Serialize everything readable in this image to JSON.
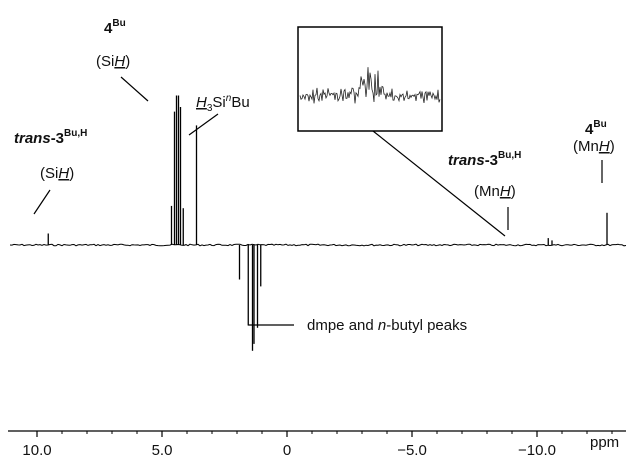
{
  "chart_data": {
    "type": "line",
    "xlabel": "",
    "x_unit": "ppm",
    "x_reversed": true,
    "xlim": [
      10.5,
      -13.5
    ],
    "x_ticks": [
      "10.0",
      "5.0",
      "0",
      "−5.0",
      "−10.0"
    ],
    "x_tick_values": [
      10.0,
      5.0,
      0,
      -5.0,
      -10.0
    ],
    "baseline_y": 0,
    "peaks": [
      {
        "x": 9.55,
        "y": 0.05
      },
      {
        "x": 4.62,
        "y": 0.17
      },
      {
        "x": 4.5,
        "y": 0.58
      },
      {
        "x": 4.42,
        "y": 0.65
      },
      {
        "x": 4.34,
        "y": 0.65
      },
      {
        "x": 4.26,
        "y": 0.6
      },
      {
        "x": 4.15,
        "y": 0.16
      },
      {
        "x": 3.62,
        "y": 0.52
      },
      {
        "x": 1.9,
        "y": -0.15
      },
      {
        "x": 1.55,
        "y": -0.35
      },
      {
        "x": 1.38,
        "y": -0.46
      },
      {
        "x": 1.32,
        "y": -0.43
      },
      {
        "x": 1.18,
        "y": -0.36
      },
      {
        "x": 1.05,
        "y": -0.18
      },
      {
        "x": -10.45,
        "y": 0.03
      },
      {
        "x": -10.6,
        "y": 0.02
      },
      {
        "x": -12.8,
        "y": 0.14
      }
    ],
    "annotations": {
      "trans_label": {
        "prefix": "trans",
        "main": "-3",
        "sup": "Bu,H"
      },
      "silane_sih": "(Si",
      "silane_h": "H",
      "silane_close": ")",
      "four_main": "4",
      "four_sup": "Bu",
      "four_sih_open": "(Si",
      "four_sih_h": "H",
      "four_sih_close": ")",
      "h3si_h": "H",
      "h3si_sub": "3",
      "h3si_si": "Si",
      "h3si_sup": "n",
      "h3si_bu": "Bu",
      "mnh_open": "(Mn",
      "mnh_h": "H",
      "mnh_close": ")",
      "dmpe_prefix": "dmpe and ",
      "dmpe_italic": "n",
      "dmpe_suffix": "-butyl peaks"
    }
  }
}
